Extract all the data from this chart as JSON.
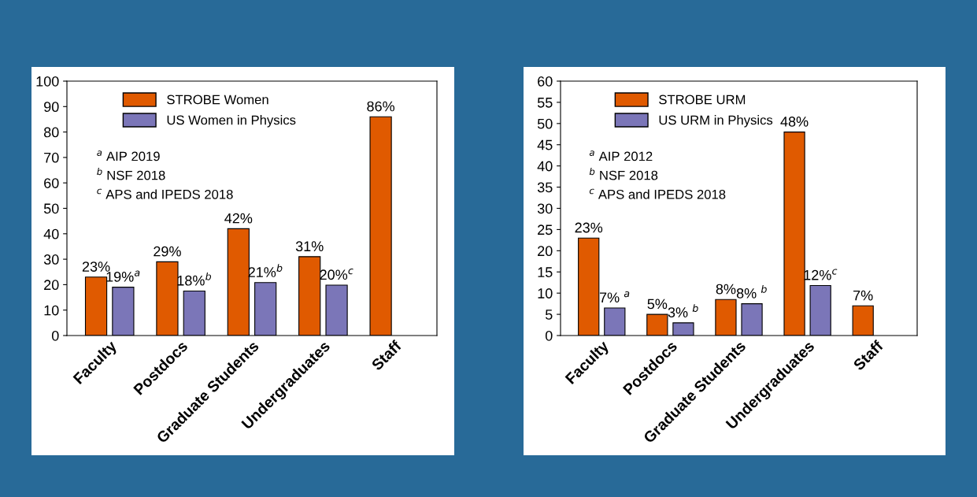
{
  "chart_data": [
    {
      "type": "bar",
      "categories": [
        "Faculty",
        "Postdocs",
        "Graduate Students",
        "Undergraduates",
        "Staff"
      ],
      "ylim": [
        0,
        100
      ],
      "yticks": [
        0,
        10,
        20,
        30,
        40,
        50,
        60,
        70,
        80,
        90,
        100
      ],
      "grid": false,
      "legend": "top left",
      "series": [
        {
          "name": "STROBE Women",
          "color": "#e05a00",
          "values": [
            23,
            29,
            42,
            31,
            86
          ],
          "value_labels": [
            "23%",
            "29%",
            "42%",
            "31%",
            "86%"
          ]
        },
        {
          "name": "US Women in Physics",
          "color": "#7b76b8",
          "values": [
            19,
            17.5,
            20.8,
            19.8,
            null
          ],
          "value_labels": [
            "19%$^{a}$",
            "18%$^{b}$",
            "21%$^{b}$",
            "20%$^{c}$",
            null
          ]
        }
      ],
      "annotations": [
        "$^{a}$ AIP 2019",
        "$^{b}$ NSF 2018",
        "$^{c}$ APS and IPEDS 2018"
      ]
    },
    {
      "type": "bar",
      "categories": [
        "Faculty",
        "Postdocs",
        "Graduate Students",
        "Undergraduates",
        "Staff"
      ],
      "ylim": [
        0,
        60
      ],
      "yticks": [
        0,
        5,
        10,
        15,
        20,
        25,
        30,
        35,
        40,
        45,
        50,
        55,
        60
      ],
      "grid": false,
      "legend": "top left",
      "series": [
        {
          "name": "STROBE URM",
          "color": "#e05a00",
          "values": [
            23,
            5,
            8.5,
            48,
            7
          ],
          "value_labels": [
            "23%",
            "5%",
            "8%",
            "48%",
            "7%"
          ]
        },
        {
          "name": "US URM in Physics",
          "color": "#7b76b8",
          "values": [
            6.5,
            3,
            7.5,
            11.8,
            null
          ],
          "value_labels": [
            "7% $^{a}$",
            "3% $^{b}$",
            "8% $^{b}$",
            "12%$^{c}$",
            null
          ]
        }
      ],
      "annotations": [
        "$^{a}$ AIP 2012",
        "$^{b}$ NSF 2018",
        "$^{c}$ APS and IPEDS 2018"
      ]
    }
  ]
}
